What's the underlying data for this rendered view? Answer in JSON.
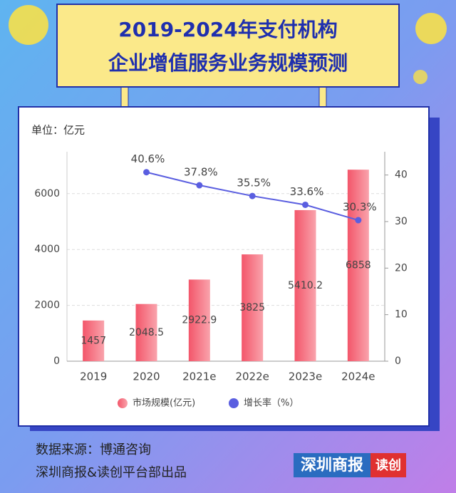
{
  "header": {
    "title_lines": [
      "2019-2024年支付机构",
      "企业增值服务业务规模预测"
    ]
  },
  "chart_data": {
    "type": "bar",
    "unit_label": "单位：亿元",
    "categories": [
      "2019",
      "2020",
      "2021e",
      "2022e",
      "2023e",
      "2024e"
    ],
    "series": [
      {
        "name": "市场规模(亿元)",
        "color": "#f25a6b",
        "values": [
          1457,
          2048.5,
          2922.9,
          3825,
          5410.2,
          6858
        ]
      },
      {
        "name": "增长率（%）",
        "color": "#5a5ee0",
        "type": "line",
        "axis": "y2",
        "values": [
          null,
          40.6,
          37.8,
          35.5,
          33.6,
          30.3
        ],
        "value_labels": [
          null,
          "40.6%",
          "37.8%",
          "35.5%",
          "33.6%",
          "30.3%"
        ]
      }
    ],
    "ylim": [
      0,
      7500
    ],
    "yticks": [
      0,
      2000,
      4000,
      6000
    ],
    "y2lim": [
      0,
      45
    ],
    "y2ticks": [
      0,
      10,
      20,
      30,
      40
    ],
    "grid": true
  },
  "footer": {
    "source": "数据来源：博通咨询",
    "producer": "深圳商报&读创平台部出品"
  },
  "logo": {
    "name": "深圳商报",
    "brand": "读创"
  }
}
